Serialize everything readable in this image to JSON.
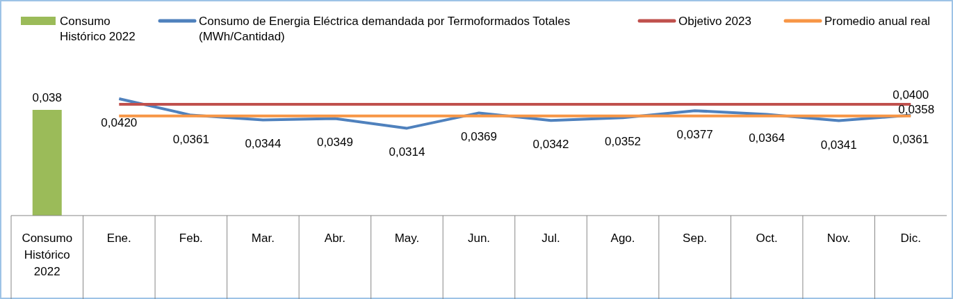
{
  "chart_data": {
    "type": "bar",
    "categories": [
      "Consumo Histórico 2022",
      "Ene.",
      "Feb.",
      "Mar.",
      "Abr.",
      "May.",
      "Jun.",
      "Jul.",
      "Ago.",
      "Sep.",
      "Oct.",
      "Nov.",
      "Dic."
    ],
    "legend": "top",
    "series": [
      {
        "name": "Consumo Histórico 2022",
        "color": "#9bbb59",
        "values": [
          0.038,
          null,
          null,
          null,
          null,
          null,
          null,
          null,
          null,
          null,
          null,
          null,
          null
        ],
        "value_labels": [
          "0,038",
          null,
          null,
          null,
          null,
          null,
          null,
          null,
          null,
          null,
          null,
          null,
          null
        ]
      },
      {
        "name": "Consumo de Energia Eléctrica demandada por Termoformados Totales (MWh/Cantidad)",
        "type": "line",
        "color": "#4f81bd",
        "values": [
          null,
          0.042,
          0.0361,
          0.0344,
          0.0349,
          0.0314,
          0.0369,
          0.0342,
          0.0352,
          0.0377,
          0.0364,
          0.0341,
          0.0361
        ],
        "value_labels": [
          null,
          "0,0420",
          "0,0361",
          "0,0344",
          "0,0349",
          "0,0314",
          "0,0369",
          "0,0342",
          "0,0352",
          "0,0377",
          "0,0364",
          "0,0341",
          "0,0361"
        ]
      },
      {
        "name": "Objetivo 2023",
        "type": "line",
        "color": "#c0504d",
        "values": [
          null,
          0.04,
          0.04,
          0.04,
          0.04,
          0.04,
          0.04,
          0.04,
          0.04,
          0.04,
          0.04,
          0.04,
          0.04
        ],
        "value_labels": [
          null,
          null,
          null,
          null,
          null,
          null,
          null,
          null,
          null,
          null,
          null,
          null,
          "0,0400"
        ]
      },
      {
        "name": "Promedio anual real",
        "type": "line",
        "color": "#f79646",
        "values": [
          null,
          0.0358,
          0.0358,
          0.0358,
          0.0358,
          0.0358,
          0.0358,
          0.0358,
          0.0358,
          0.0358,
          0.0358,
          0.0358,
          0.0358
        ],
        "value_labels": [
          null,
          null,
          null,
          null,
          null,
          null,
          null,
          null,
          null,
          null,
          null,
          null,
          "0,0358"
        ]
      }
    ]
  }
}
